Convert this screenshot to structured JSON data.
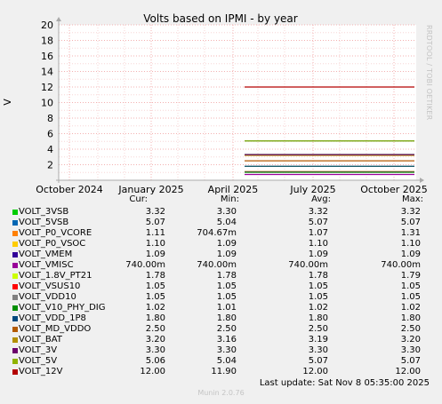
{
  "chart_data": {
    "type": "line",
    "title": "Volts based on IPMI - by year",
    "ylabel": "V",
    "ylim": [
      0,
      20
    ],
    "yticks": [
      2,
      4,
      6,
      8,
      10,
      12,
      14,
      16,
      18,
      20
    ],
    "xticks": [
      "October 2024",
      "January 2025",
      "April 2025",
      "July 2025",
      "October 2025"
    ],
    "grid": true,
    "legend_headers": [
      "Cur:",
      "Min:",
      "Avg:",
      "Max:"
    ],
    "series": [
      {
        "name": "VOLT_3VSB",
        "color": "#00cc00",
        "cur": "3.32",
        "min": "3.30",
        "avg": "3.32",
        "max": "3.32",
        "level": 3.32
      },
      {
        "name": "VOLT_5VSB",
        "color": "#0066b3",
        "cur": "5.07",
        "min": "5.04",
        "avg": "5.07",
        "max": "5.07",
        "level": 5.07
      },
      {
        "name": "VOLT_P0_VCORE",
        "color": "#ff8000",
        "cur": "1.11",
        "min": "704.67m",
        "avg": "1.07",
        "max": "1.31",
        "level": 1.11
      },
      {
        "name": "VOLT_P0_VSOC",
        "color": "#ffcc00",
        "cur": "1.10",
        "min": "1.09",
        "avg": "1.10",
        "max": "1.10",
        "level": 1.1
      },
      {
        "name": "VOLT_VMEM",
        "color": "#330099",
        "cur": "1.09",
        "min": "1.09",
        "avg": "1.09",
        "max": "1.09",
        "level": 1.09
      },
      {
        "name": "VOLT_VMISC",
        "color": "#990099",
        "cur": "740.00m",
        "min": "740.00m",
        "avg": "740.00m",
        "max": "740.00m",
        "level": 0.74
      },
      {
        "name": "VOLT_1.8V_PT21",
        "color": "#ccff00",
        "cur": "1.78",
        "min": "1.78",
        "avg": "1.78",
        "max": "1.79",
        "level": 1.78
      },
      {
        "name": "VOLT_VSUS10",
        "color": "#ff0000",
        "cur": "1.05",
        "min": "1.05",
        "avg": "1.05",
        "max": "1.05",
        "level": 1.05
      },
      {
        "name": "VOLT_VDD10",
        "color": "#808080",
        "cur": "1.05",
        "min": "1.05",
        "avg": "1.05",
        "max": "1.05",
        "level": 1.05
      },
      {
        "name": "VOLT_V10_PHY_DIG",
        "color": "#008f00",
        "cur": "1.02",
        "min": "1.01",
        "avg": "1.02",
        "max": "1.02",
        "level": 1.02
      },
      {
        "name": "VOLT_VDD_1P8",
        "color": "#00487d",
        "cur": "1.80",
        "min": "1.80",
        "avg": "1.80",
        "max": "1.80",
        "level": 1.8
      },
      {
        "name": "VOLT_MD_VDDO",
        "color": "#b35a00",
        "cur": "2.50",
        "min": "2.50",
        "avg": "2.50",
        "max": "2.50",
        "level": 2.5
      },
      {
        "name": "VOLT_BAT",
        "color": "#b38f00",
        "cur": "3.20",
        "min": "3.16",
        "avg": "3.19",
        "max": "3.20",
        "level": 3.2
      },
      {
        "name": "VOLT_3V",
        "color": "#6b006b",
        "cur": "3.30",
        "min": "3.30",
        "avg": "3.30",
        "max": "3.30",
        "level": 3.3
      },
      {
        "name": "VOLT_5V",
        "color": "#8fb300",
        "cur": "5.06",
        "min": "5.04",
        "avg": "5.07",
        "max": "5.07",
        "level": 5.06
      },
      {
        "name": "VOLT_12V",
        "color": "#b30000",
        "cur": "12.00",
        "min": "11.90",
        "avg": "12.00",
        "max": "12.00",
        "level": 12.0
      }
    ],
    "footer": "Last update: Sat Nov  8 05:35:00 2025",
    "generator": "Munin 2.0.76",
    "watermark": "RRDTOOL / TOBI OETIKER"
  }
}
